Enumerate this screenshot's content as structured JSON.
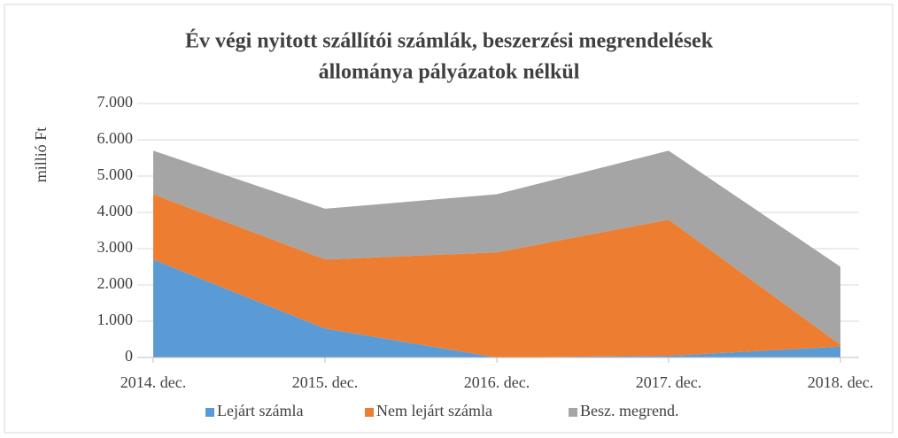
{
  "chart_data": {
    "type": "area",
    "stacked": true,
    "title": [
      "Év végi nyitott szállítói számlák, beszerzési megrendelések",
      "állománya pályázatok nélkül"
    ],
    "y_label": "millió Ft",
    "categories": [
      "2014. dec.",
      "2015. dec.",
      "2016. dec.",
      "2017. dec.",
      "2018. dec."
    ],
    "series": [
      {
        "name": "Lejárt számla",
        "color": "#5b9bd5",
        "values": [
          2700,
          800,
          0,
          50,
          300
        ]
      },
      {
        "name": "Nem lejárt számla",
        "color": "#ed7d31",
        "values": [
          1800,
          1900,
          2900,
          3750,
          50
        ]
      },
      {
        "name": "Besz. megrend.",
        "color": "#a5a5a5",
        "values": [
          1200,
          1400,
          1600,
          1900,
          2150
        ]
      }
    ],
    "ylim": [
      0,
      7000
    ],
    "yticks": [
      0,
      {
        "value": 1000,
        "label": "1.000"
      },
      {
        "value": 2000,
        "label": "2.000"
      },
      {
        "value": 3000,
        "label": "3.000"
      },
      {
        "value": 4000,
        "label": "4.000"
      },
      {
        "value": 5000,
        "label": "5.000"
      },
      {
        "value": 6000,
        "label": "6.000"
      },
      {
        "value": 7000,
        "label": "7.000"
      }
    ],
    "grid": true,
    "legend": "bottom"
  }
}
